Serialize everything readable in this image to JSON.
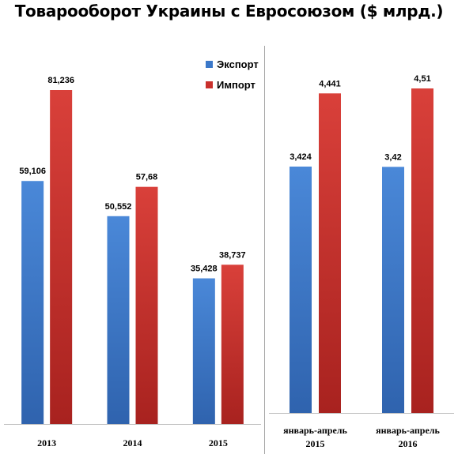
{
  "title": "Товарооборот Украины с Евросоюзом ($ млрд.)",
  "colors": {
    "export": "#3b78c9",
    "import": "#c9302c"
  },
  "legend": {
    "export_label": "Экспорт",
    "import_label": "Импорт"
  },
  "chart_data": [
    {
      "type": "bar",
      "categories": [
        "2013",
        "2014",
        "2015"
      ],
      "series": [
        {
          "name": "Экспорт",
          "values": [
            59.106,
            50.552,
            35.428
          ],
          "labels": [
            "59,106",
            "50,552",
            "35,428"
          ]
        },
        {
          "name": "Импорт",
          "values": [
            81.236,
            57.68,
            38.737
          ],
          "labels": [
            "81,236",
            "57,68",
            "38,737"
          ]
        }
      ],
      "ylim": [
        0,
        81.236
      ],
      "grid": false,
      "legend_position": "top-right"
    },
    {
      "type": "bar",
      "categories": [
        [
          "январь-апрель",
          "2015"
        ],
        [
          "январь-апрель",
          "2016"
        ]
      ],
      "series": [
        {
          "name": "Экспорт",
          "values": [
            3.424,
            3.42
          ],
          "labels": [
            "3,424",
            "3,42"
          ]
        },
        {
          "name": "Импорт",
          "values": [
            4.441,
            4.51
          ],
          "labels": [
            "4,441",
            "4,51"
          ]
        }
      ],
      "ylim": [
        0,
        4.51
      ],
      "grid": false
    }
  ]
}
